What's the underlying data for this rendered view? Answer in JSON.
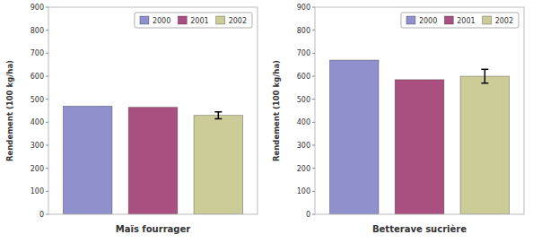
{
  "chart_data": [
    {
      "type": "bar",
      "xlabel": "Maïs fourrager",
      "ylabel": "Rendement (100 kg/ha)",
      "categories": [
        "2000",
        "2001",
        "2002"
      ],
      "values": [
        470,
        465,
        430
      ],
      "error": [
        0,
        0,
        15
      ],
      "colors": [
        "#9090cc",
        "#aa5080",
        "#cccc99"
      ],
      "ylim": [
        0,
        900
      ],
      "yticks": [
        0,
        100,
        200,
        300,
        400,
        500,
        600,
        700,
        800,
        900
      ],
      "grid": false,
      "legend": "upper right",
      "tick_labels": "y"
    },
    {
      "type": "bar",
      "xlabel": "Betterave sucrière",
      "ylabel": "Rendement (100 kg/ha)",
      "categories": [
        "2000",
        "2001",
        "2002"
      ],
      "values": [
        670,
        585,
        600
      ],
      "error": [
        0,
        0,
        30
      ],
      "colors": [
        "#9090cc",
        "#aa5080",
        "#cccc99"
      ],
      "ylim": [
        0,
        900
      ],
      "yticks": [
        0,
        100,
        200,
        300,
        400,
        500,
        600,
        700,
        800,
        900
      ],
      "grid": false,
      "legend": "upper right",
      "tick_labels": "y"
    }
  ]
}
